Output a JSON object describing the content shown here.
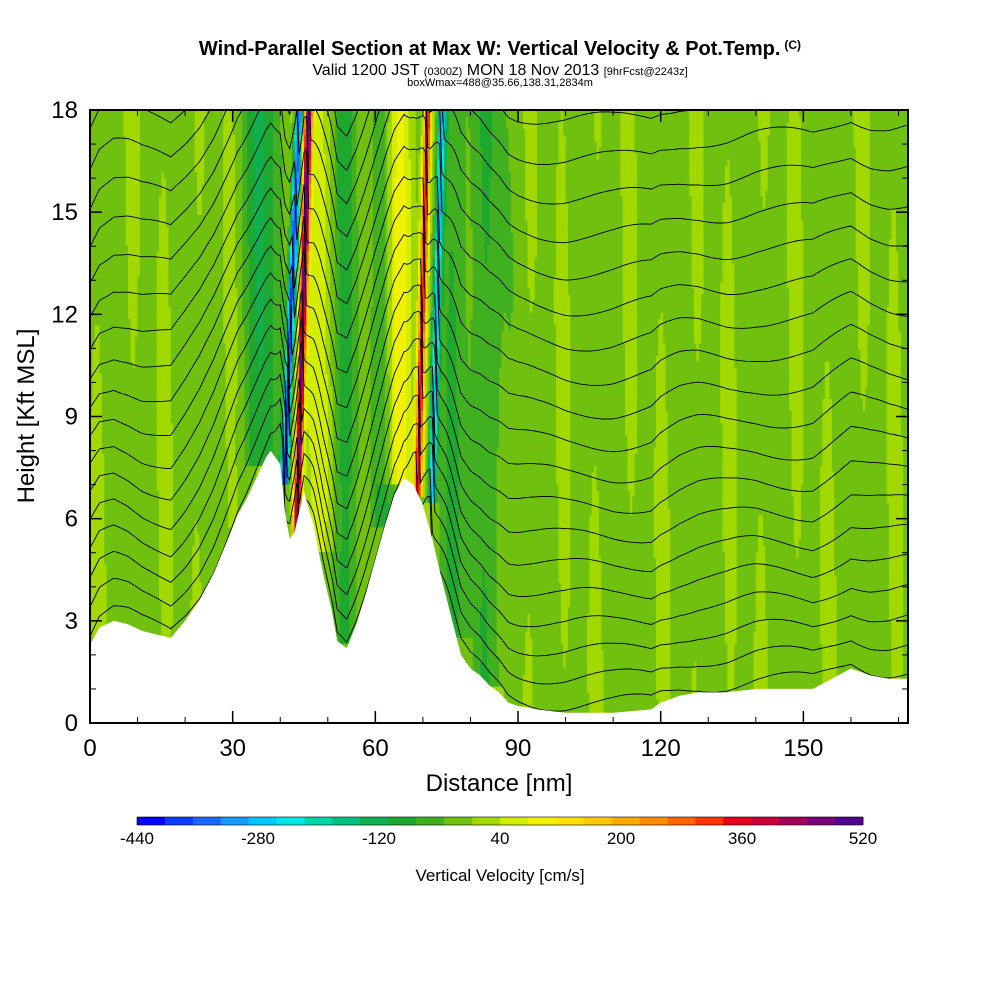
{
  "header": {
    "title": "Wind-Parallel Section at Max W: Vertical Velocity & Pot.Temp.",
    "copyright": "(C)",
    "valid_prefix": "Valid 1200 JST",
    "valid_utc": "(0300Z)",
    "valid_date": "MON 18 Nov 2013",
    "forecast": "[9hrFcst@2243z]",
    "box_info": "boxWmax=488@35.66,138.31,2834m"
  },
  "chart_data": {
    "type": "heatmap",
    "xlabel": "Distance [nm]",
    "ylabel": "Height [Kft MSL]",
    "xlim": [
      0,
      172
    ],
    "ylim": [
      0,
      18
    ],
    "x_ticks": [
      0,
      30,
      60,
      90,
      120,
      150
    ],
    "y_ticks": [
      0,
      3,
      6,
      9,
      12,
      15,
      18
    ],
    "colorbar": {
      "label": "Vertical Velocity [cm/s]",
      "range": [
        -440,
        520
      ],
      "step": 40,
      "tick_labels": [
        -440,
        -280,
        -120,
        40,
        200,
        360,
        520
      ],
      "colors": [
        "#0000ff",
        "#0b3cff",
        "#1a66ff",
        "#1a99ff",
        "#00c8ff",
        "#00e5e5",
        "#00d4a8",
        "#00c080",
        "#10b050",
        "#1ea830",
        "#40b020",
        "#70c010",
        "#a0d800",
        "#d2ee00",
        "#f2f200",
        "#ffe000",
        "#ffc800",
        "#ffaa00",
        "#ff8c00",
        "#ff6400",
        "#ff3200",
        "#e6001e",
        "#c8003c",
        "#a0005a",
        "#78007a",
        "#50008c"
      ]
    },
    "terrain": [
      [
        0,
        2.3
      ],
      [
        2,
        2.8
      ],
      [
        5,
        3.0
      ],
      [
        8,
        2.9
      ],
      [
        11,
        2.7
      ],
      [
        14,
        2.6
      ],
      [
        17,
        2.5
      ],
      [
        20,
        3.0
      ],
      [
        23,
        3.6
      ],
      [
        26,
        4.4
      ],
      [
        29,
        5.4
      ],
      [
        31,
        6.1
      ],
      [
        33,
        6.6
      ],
      [
        35,
        7.2
      ],
      [
        37,
        7.8
      ],
      [
        38,
        8.0
      ],
      [
        40,
        7.6
      ],
      [
        41,
        6.2
      ],
      [
        42,
        5.4
      ],
      [
        43,
        5.6
      ],
      [
        45,
        6.8
      ],
      [
        47,
        5.8
      ],
      [
        49,
        4.4
      ],
      [
        51,
        3.2
      ],
      [
        52,
        2.4
      ],
      [
        54,
        2.2
      ],
      [
        56,
        2.9
      ],
      [
        58,
        3.8
      ],
      [
        60,
        4.8
      ],
      [
        62,
        5.8
      ],
      [
        64,
        6.7
      ],
      [
        66,
        7.2
      ],
      [
        68,
        7.0
      ],
      [
        70,
        6.4
      ],
      [
        72,
        5.4
      ],
      [
        74,
        4.2
      ],
      [
        76,
        3.1
      ],
      [
        78,
        2.0
      ],
      [
        80,
        1.6
      ],
      [
        82,
        1.4
      ],
      [
        84,
        1.1
      ],
      [
        86,
        0.9
      ],
      [
        88,
        0.6
      ],
      [
        90,
        0.5
      ],
      [
        94,
        0.4
      ],
      [
        100,
        0.3
      ],
      [
        110,
        0.3
      ],
      [
        118,
        0.4
      ],
      [
        120,
        0.6
      ],
      [
        124,
        0.8
      ],
      [
        128,
        0.9
      ],
      [
        134,
        0.9
      ],
      [
        140,
        1.0
      ],
      [
        146,
        1.0
      ],
      [
        152,
        1.0
      ],
      [
        156,
        1.3
      ],
      [
        160,
        1.6
      ],
      [
        164,
        1.4
      ],
      [
        168,
        1.3
      ],
      [
        172,
        1.3
      ]
    ],
    "updrafts": [
      {
        "peak": 520,
        "base": [
          43.5,
          5.8
        ],
        "top": [
          46.0,
          18.0
        ]
      },
      {
        "peak": 400,
        "base": [
          69.0,
          7.2
        ],
        "top": [
          71.0,
          18.0
        ]
      }
    ],
    "downdrafts": [
      {
        "peak": -440,
        "base": [
          41.0,
          7.5
        ],
        "top": [
          44.0,
          18.0
        ]
      },
      {
        "peak": -320,
        "base": [
          72.0,
          7.0
        ],
        "top": [
          74.0,
          18.0
        ]
      }
    ]
  }
}
